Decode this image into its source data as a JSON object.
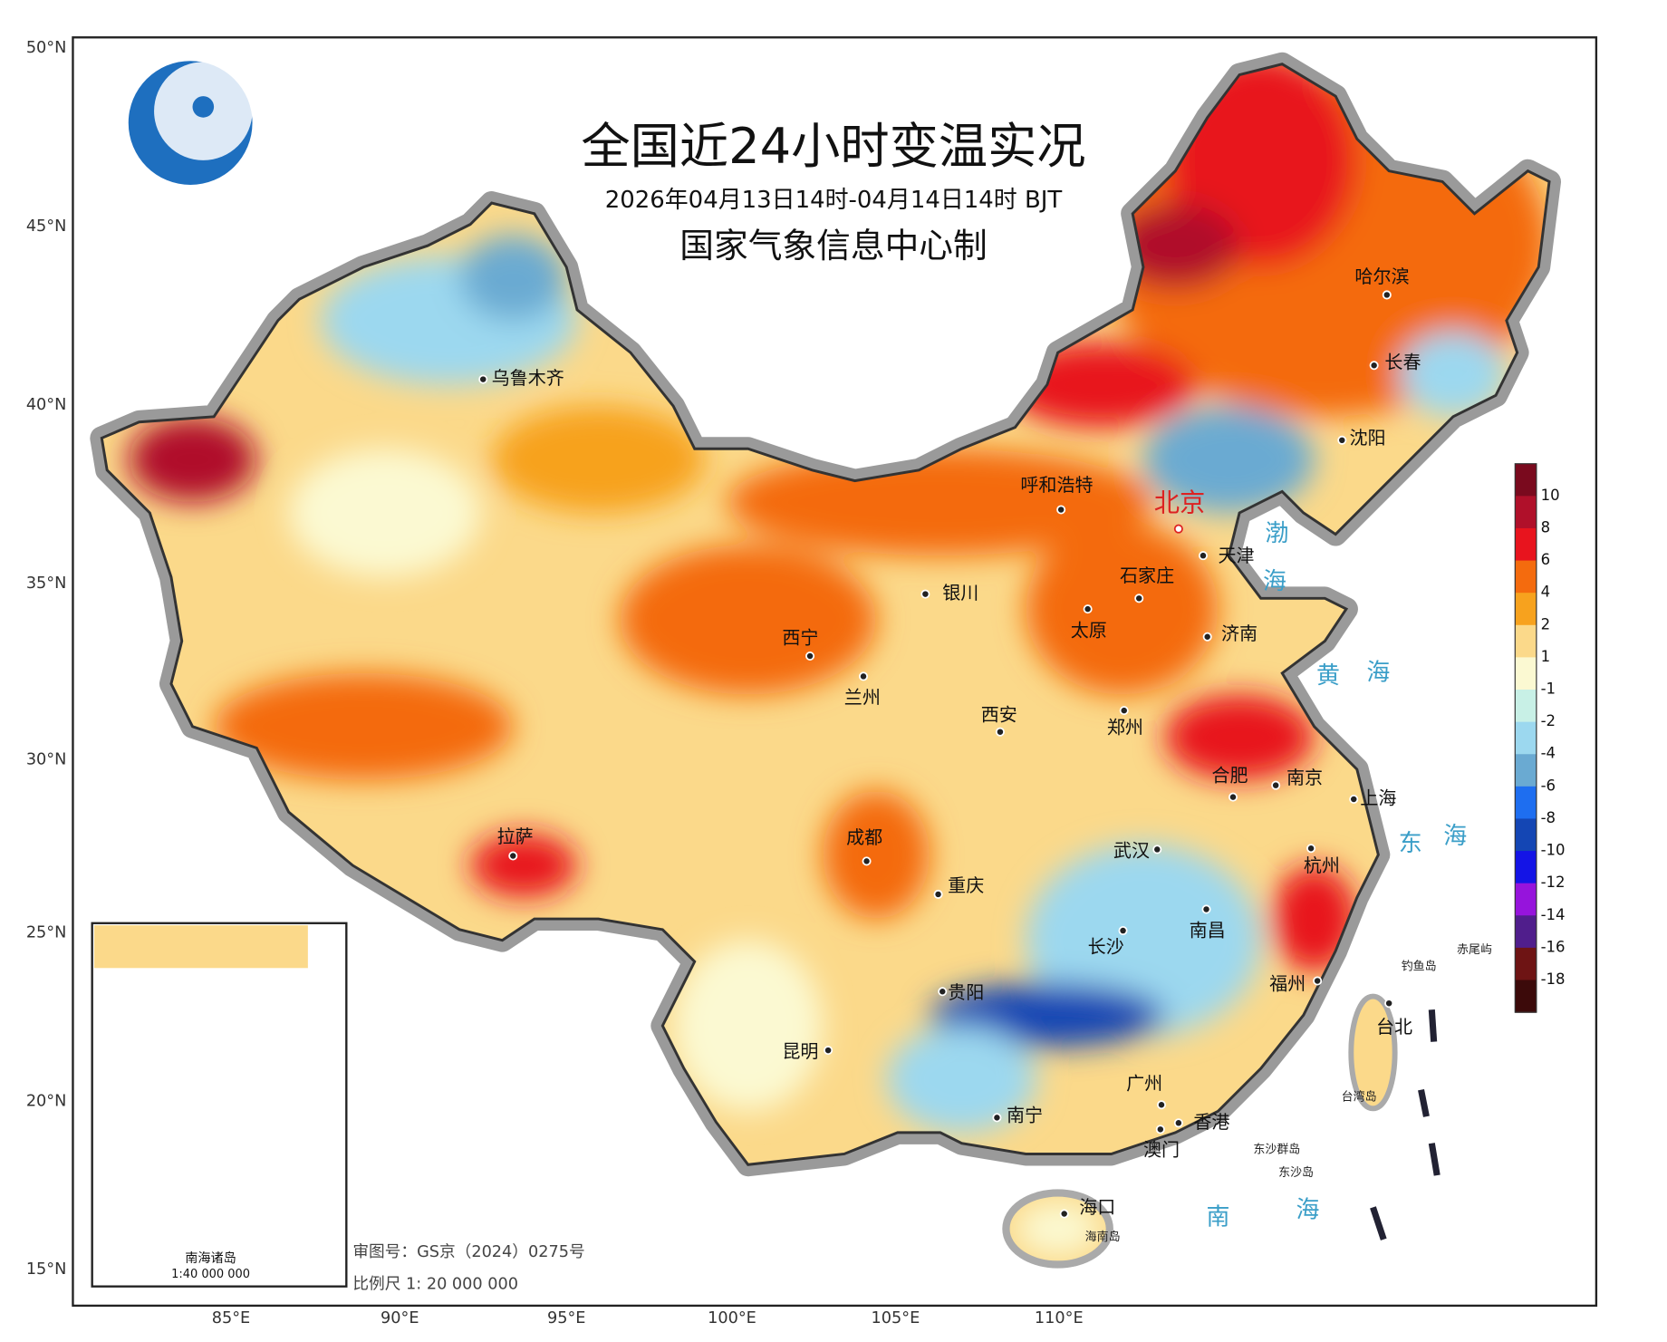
{
  "title": "全国近24小时变温实况",
  "subtitle": "2026年04月13日14时-04月14日14时 BJT",
  "producer": "国家气象信息中心制",
  "lat_labels": [
    "50°N",
    "45°N",
    "40°N",
    "35°N",
    "30°N",
    "25°N",
    "20°N",
    "15°N"
  ],
  "lon_labels": [
    "85°E",
    "90°E",
    "95°E",
    "100°E",
    "105°E",
    "110°E"
  ],
  "cities": [
    "乌鲁木齐",
    "呼和浩特",
    "北京",
    "天津",
    "石家庄",
    "银川",
    "太原",
    "济南",
    "西宁",
    "兰州",
    "西安",
    "郑州",
    "哈尔滨",
    "长春",
    "沈阳",
    "合肥",
    "南京",
    "上海",
    "拉萨",
    "成都",
    "武汉",
    "杭州",
    "重庆",
    "南昌",
    "长沙",
    "福州",
    "贵阳",
    "台北",
    "昆明",
    "广州",
    "香港",
    "南宁",
    "澳门",
    "海口"
  ],
  "seas": [
    "渤",
    "海",
    "黄",
    "海",
    "东",
    "海",
    "南",
    "海"
  ],
  "islands": [
    "钓鱼岛",
    "赤尾屿",
    "东沙群岛",
    "东沙岛",
    "台湾岛",
    "海南岛"
  ],
  "legend": {
    "labels": [
      10,
      8,
      6,
      4,
      2,
      1,
      -1,
      -2,
      -4,
      -6,
      -8,
      -10,
      -12,
      -14,
      -16,
      -18
    ],
    "colors": [
      "#7a0a1e",
      "#b0102a",
      "#e8141e",
      "#f46b0e",
      "#f7a21e",
      "#fbd98a",
      "#fbf9d2",
      "#c8f0e6",
      "#9cd8ef",
      "#6aaad2",
      "#1e6ef0",
      "#1446b4",
      "#1414e6",
      "#9614dc",
      "#501e8c",
      "#6e1414",
      "#3c0a0a"
    ]
  },
  "inset": {
    "title": "南海诸岛",
    "scale": "1:40 000 000"
  },
  "footer": {
    "review": "审图号：GS京（2024）0275号",
    "scale": "比例尺 1: 20 000 000"
  }
}
